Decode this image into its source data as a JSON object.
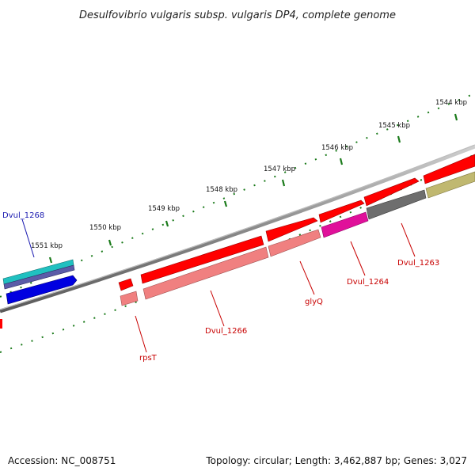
{
  "title": "Desulfovibrio vulgaris subsp. vulgaris DP4, complete genome",
  "footer": {
    "accession": "Accession: NC_008751",
    "summary": "Topology: circular; Length: 3,462,887 bp; Genes: 3,027"
  },
  "ticks": [
    "1544 kbp",
    "1545 kbp",
    "1546 kbp",
    "1547 kbp",
    "1548 kbp",
    "1549 kbp",
    "1550 kbp",
    "1551 kbp"
  ],
  "labels": {
    "dvul1268": "Dvul_1268",
    "rpsT": "rpsT",
    "dvul1266": "Dvul_1266",
    "glyQ": "glyQ",
    "dvul1264": "Dvul_1264",
    "dvul1263": "Dvul_1263"
  },
  "colors": {
    "cds_red": "#ff0000",
    "gene_pink": "#f08080",
    "magenta": "#e0109a",
    "gray": "#6e6e6e",
    "olive": "#c0b870",
    "blue": "#0000e0",
    "cyan": "#20c0c0",
    "label_red": "#c80000",
    "label_blue": "#1a1ab0",
    "tick_green": "#1a7a1a"
  }
}
